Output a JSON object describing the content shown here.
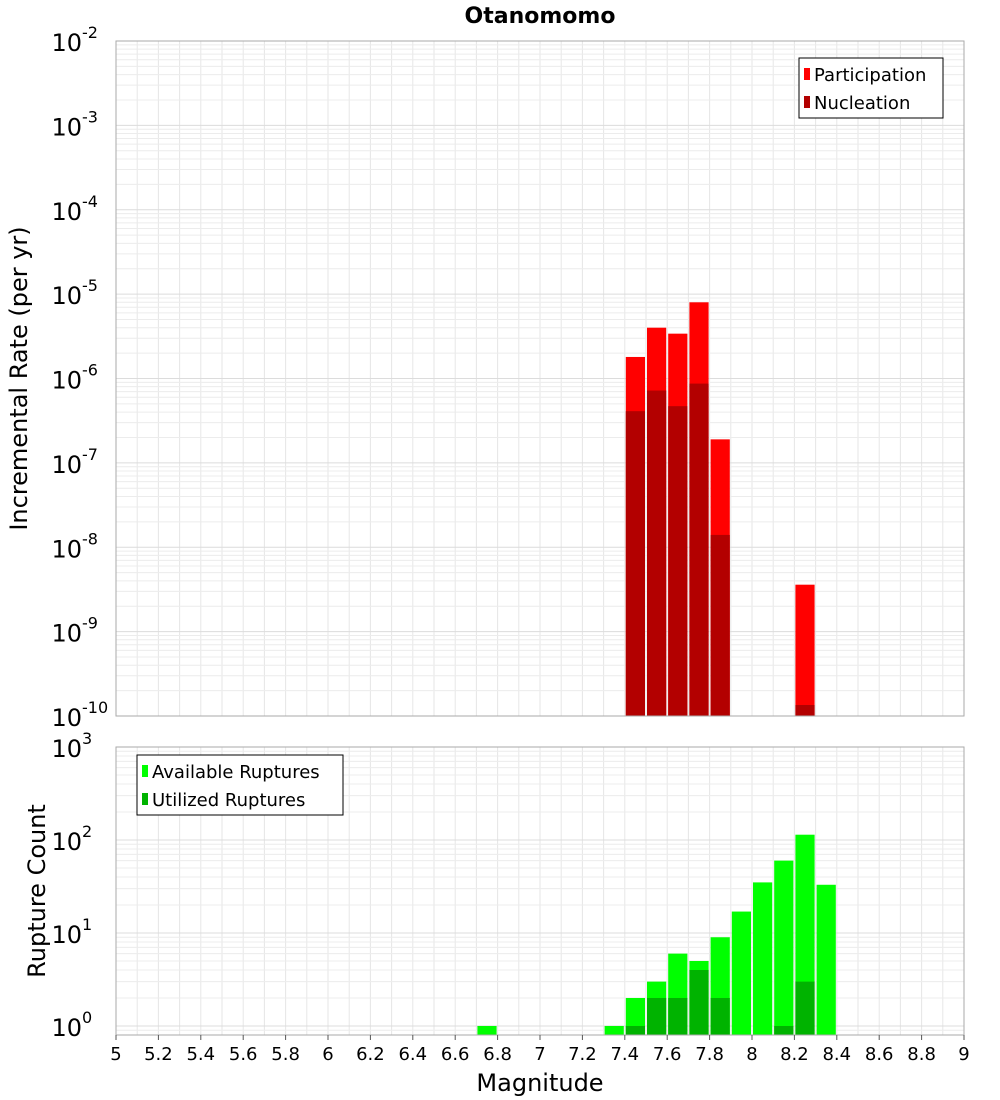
{
  "chart_data": [
    {
      "type": "bar",
      "title": "Otanomomo",
      "ylabel": "Incremental Rate (per yr)",
      "yscale": "log",
      "ylim": [
        1e-10,
        0.01
      ],
      "xlim": [
        5,
        9
      ],
      "grid": true,
      "legend": {
        "position": "top-right",
        "entries": [
          "Participation",
          "Nucleation"
        ]
      },
      "bar_width": 0.1,
      "colors": {
        "Participation": "#ff0000",
        "Nucleation": "#b30000"
      },
      "series": [
        {
          "name": "Participation",
          "x": [
            7.45,
            7.55,
            7.65,
            7.75,
            7.85,
            8.25
          ],
          "values": [
            1.8e-06,
            4e-06,
            3.4e-06,
            8e-06,
            1.9e-07,
            3.6e-09
          ]
        },
        {
          "name": "Nucleation",
          "x": [
            7.45,
            7.55,
            7.65,
            7.75,
            7.85,
            8.25
          ],
          "values": [
            4.1e-07,
            7.2e-07,
            4.7e-07,
            8.7e-07,
            1.4e-08,
            1.35e-10
          ]
        }
      ]
    },
    {
      "type": "bar",
      "ylabel": "Rupture Count",
      "xlabel": "Magnitude",
      "yscale": "log",
      "ylim": [
        0.8,
        1000
      ],
      "xlim": [
        5,
        9
      ],
      "grid": true,
      "legend": {
        "position": "top-left",
        "entries": [
          "Available Ruptures",
          "Utilized Ruptures"
        ]
      },
      "bar_width": 0.1,
      "colors": {
        "Available Ruptures": "#00ff00",
        "Utilized Ruptures": "#00b300"
      },
      "xticks": [
        "5",
        "5.2",
        "5.4",
        "5.6",
        "5.8",
        "6",
        "6.2",
        "6.4",
        "6.6",
        "6.8",
        "7",
        "7.2",
        "7.4",
        "7.6",
        "7.8",
        "8",
        "8.2",
        "8.4",
        "8.6",
        "8.8",
        "9"
      ],
      "series": [
        {
          "name": "Available Ruptures",
          "x": [
            6.75,
            7.35,
            7.45,
            7.55,
            7.65,
            7.75,
            7.85,
            7.95,
            8.05,
            8.15,
            8.25,
            8.35
          ],
          "values": [
            1,
            1,
            2,
            3,
            6,
            5,
            9,
            17,
            35,
            60,
            114,
            33
          ]
        },
        {
          "name": "Utilized Ruptures",
          "x": [
            7.45,
            7.55,
            7.65,
            7.75,
            7.85,
            8.15,
            8.25
          ],
          "values": [
            1,
            2,
            2,
            4,
            2,
            1,
            3
          ]
        }
      ]
    }
  ]
}
